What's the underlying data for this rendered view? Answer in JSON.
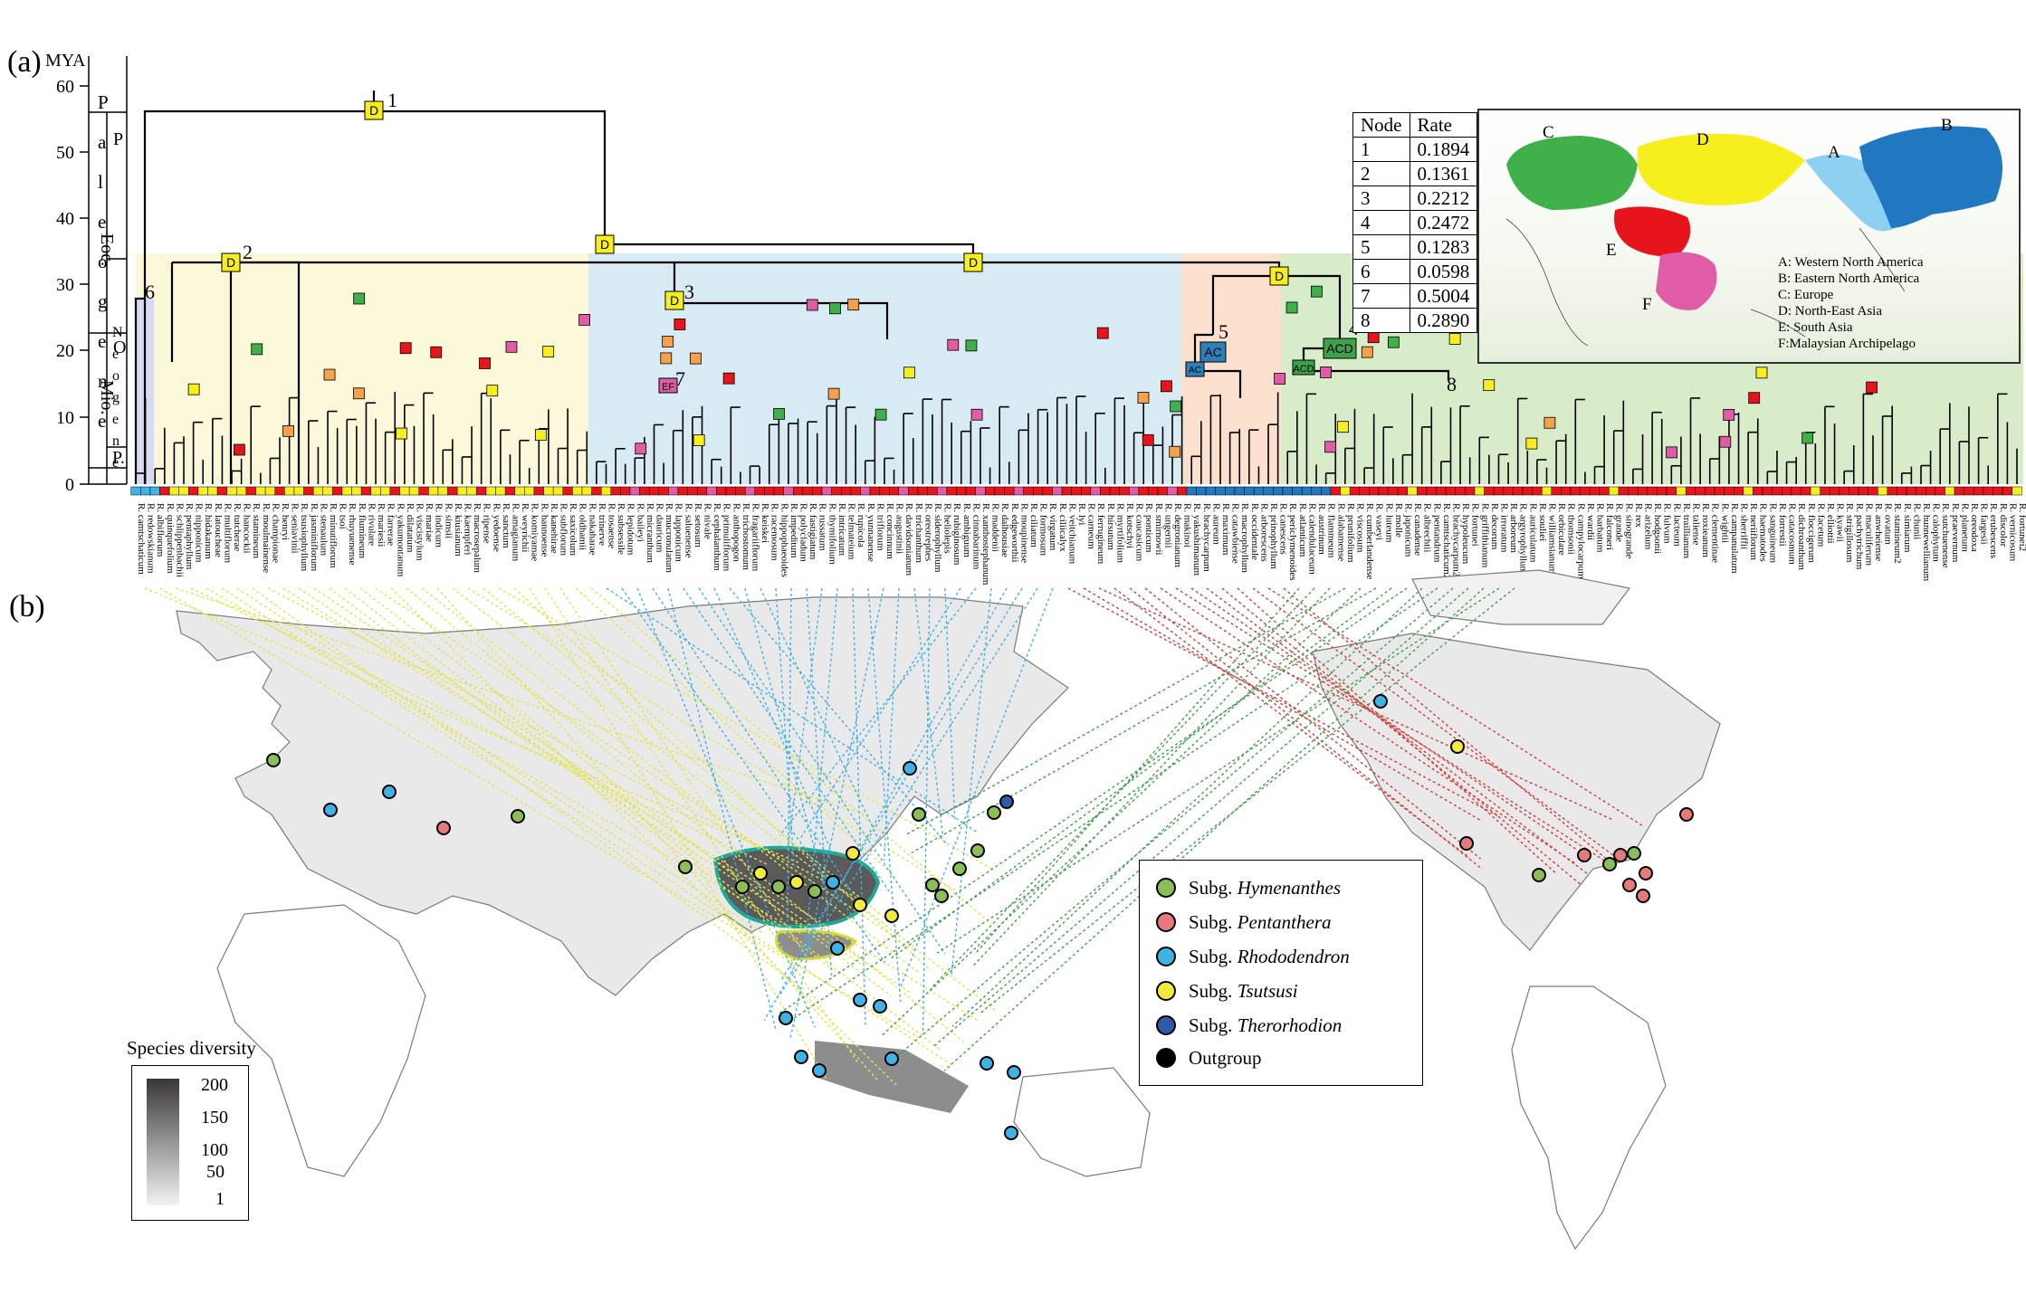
{
  "panel_a": {
    "label": "(a)",
    "axis_unit": "MYA",
    "ticks": [
      "60",
      "50",
      "40",
      "30",
      "20",
      "10",
      "0"
    ],
    "epoch_letters_col1": [
      "N",
      "e",
      "o",
      "g",
      "e",
      "n",
      "e"
    ],
    "epoch_letters_col2": [
      "P",
      "a",
      "l",
      "e",
      "o",
      "g",
      "e",
      "n",
      "e"
    ],
    "epochs": [
      "Eoc.",
      "Oli.",
      "Mio.",
      "Pli.",
      "Q"
    ],
    "epoch_word_a": "P",
    "epoch_word_b": "O",
    "epoch_word_c": "P.",
    "nodes": [
      {
        "num": "1",
        "area": "D"
      },
      {
        "num": "2",
        "area": "D"
      },
      {
        "num": "3",
        "area": "D"
      },
      {
        "num": "4",
        "area": "ACD"
      },
      {
        "num": "5",
        "area": "AC"
      },
      {
        "num": "6",
        "area": ""
      },
      {
        "num": "7",
        "area": "EF"
      },
      {
        "num": "8",
        "area": ""
      }
    ],
    "extra_node_labels": {
      "n_D_mid": "D",
      "n_D_right": "D",
      "n_D_left": "D",
      "n_ACD_small": "ACD",
      "n_AC_small": "AC"
    },
    "rate_table": {
      "headers": [
        "Node",
        "Rate"
      ],
      "rows": [
        [
          "1",
          "0.1894"
        ],
        [
          "2",
          "0.1361"
        ],
        [
          "3",
          "0.2212"
        ],
        [
          "4",
          "0.2472"
        ],
        [
          "5",
          "0.1283"
        ],
        [
          "6",
          "0.0598"
        ],
        [
          "7",
          "0.5004"
        ],
        [
          "8",
          "0.2890"
        ]
      ]
    },
    "inset_map": {
      "region_labels": [
        "A",
        "B",
        "C",
        "D",
        "E",
        "F"
      ],
      "legend": [
        "A: Western North America",
        "B: Eastern North America",
        "C: Europe",
        "D: North-East Asia",
        "E: South Asia",
        "F:Malaysian Archipelago"
      ]
    },
    "species_prefix": "R.",
    "species": [
      "camtschaticum",
      "redowskianum",
      "albiflorum",
      "quinquefolium",
      "schlippenbachii",
      "pentaphyllum",
      "nipponicum",
      "hidakanum",
      "latoucheae",
      "multiflorum",
      "tutcherae",
      "hancockii",
      "stamineum",
      "moulmainense",
      "championae",
      "henryi",
      "seniavinii",
      "tsusiophyllum",
      "jasminiflorum",
      "stenaulum",
      "minutiflorum",
      "tsoi",
      "rhuyuenense",
      "flumineum",
      "rivulare",
      "mariesii",
      "farrerae",
      "yakumontanum",
      "dilatatum",
      "viscistylum",
      "mariae",
      "indicum",
      "simsii",
      "kiusianum",
      "kaempferi",
      "macrosepalum",
      "ripense",
      "yedoense",
      "sanctum",
      "amagianum",
      "weyrichii",
      "komiyamae",
      "hannoense",
      "kanehirae",
      "subflorum",
      "saxicolum",
      "oldhamii",
      "nakaharae",
      "trinerve",
      "tosaense",
      "subsessile",
      "lepidotum",
      "baileyi",
      "micranthum",
      "dauricum",
      "mucronulatum",
      "lapponicum",
      "saluenense",
      "setosum",
      "nivale",
      "cephalanthum",
      "primuliflorum",
      "anthopogon",
      "trichostomum",
      "fragariiflorum",
      "keiskei",
      "racemosum",
      "hippophaeoides",
      "impeditum",
      "polycladum",
      "fastigiatum",
      "russatum",
      "thymifolium",
      "intricatum",
      "telmateium",
      "rupicola",
      "yunnanense",
      "triflorum",
      "concinnum",
      "augustinii",
      "davidsonianum",
      "trichanthum",
      "oreotrephes",
      "siderophyllum",
      "heliolepis",
      "rubiginosum",
      "ambiguum",
      "cinnabarinum",
      "xanthostephanum",
      "maddenii",
      "dalhousiae",
      "edgeworthii",
      "moupinense",
      "ciliatum",
      "formosum",
      "virgatum",
      "ciliicalyx",
      "veitchianum",
      "lyi",
      "carneum",
      "ferrugineum",
      "hirsutum",
      "myrtifolium",
      "kotschyi",
      "caucasicum",
      "ponticum",
      "smirnowii",
      "ungernii",
      "degronianum",
      "makinoi",
      "yakushimanum",
      "brachycarpum",
      "aureum",
      "maximum",
      "catawbiense",
      "macrophyllum",
      "occidentale",
      "arborescens",
      "prinophyllum",
      "canescens",
      "periclymenoides",
      "atlanticum",
      "calendulaceum",
      "austrinum",
      "flammeum",
      "alabamense",
      "prunifolium",
      "viscosum",
      "cumberlandense",
      "vaseyi",
      "luteum",
      "molle",
      "japonicum",
      "canadense",
      "albrechtii",
      "pentandrum",
      "camtschaticum2",
      "brachycarpum2",
      "hypoleucum",
      "fortunei",
      "griffithianum",
      "decorum",
      "irroratum",
      "arboreum",
      "argyrophyllum",
      "auriculatum",
      "souliei",
      "williamsianum",
      "orbiculare",
      "thomsonii",
      "campylocarpum",
      "wardii",
      "barbatum",
      "falconeri",
      "grande",
      "sinogrande",
      "rex",
      "arizelum",
      "hodgsonii",
      "fulvum",
      "lacteum",
      "traillianum",
      "taliense",
      "roxieanum",
      "clementinae",
      "wightii",
      "campanulatum",
      "sherriffii",
      "neriiflorum",
      "haematodes",
      "sanguineum",
      "forrestii",
      "catacosmum",
      "dichroanthum",
      "floccigerum",
      "facetum",
      "elliottii",
      "kyawii",
      "strigillosum",
      "pachytrichum",
      "maculiferum",
      "anwheiense",
      "ovatum",
      "stamineum2",
      "simiarum",
      "chunii",
      "hunnewellianum",
      "calophytum",
      "sutchuenense",
      "praevernum",
      "planetum",
      "oreodoxa",
      "fargesii",
      "erubescens",
      "discolor",
      "vernicosum",
      "fortunei2"
    ]
  },
  "panel_b": {
    "label": "(b)",
    "legend": [
      {
        "prefix": "Subg.",
        "name": "Hymenanthes",
        "color": "#8bbf55"
      },
      {
        "prefix": "Subg.",
        "name": "Pentanthera",
        "color": "#e8797a"
      },
      {
        "prefix": "Subg.",
        "name": "Rhododendron",
        "color": "#3fb2e6"
      },
      {
        "prefix": "Subg.",
        "name": "Tsutsusi",
        "color": "#f2ea3c"
      },
      {
        "prefix": "Subg.",
        "name": "Therorhodion",
        "color": "#2f5aa8"
      },
      {
        "prefix": "",
        "name": "Outgroup",
        "color": "#000000"
      }
    ],
    "diversity_legend": {
      "title": "Species diversity",
      "ticks": [
        "200",
        "150",
        "100",
        "50",
        "1"
      ]
    }
  },
  "colors": {
    "A": "#8ed0f2",
    "B": "#1f78c0",
    "C": "#3fb04a",
    "D": "#f7ee1e",
    "E": "#e8141c",
    "F": "#e05ca6",
    "bg_yellow": "#fbf7d9",
    "bg_blue": "#d8ebf5",
    "bg_orange": "#fbe0cd",
    "bg_green": "#d9ecc9"
  }
}
